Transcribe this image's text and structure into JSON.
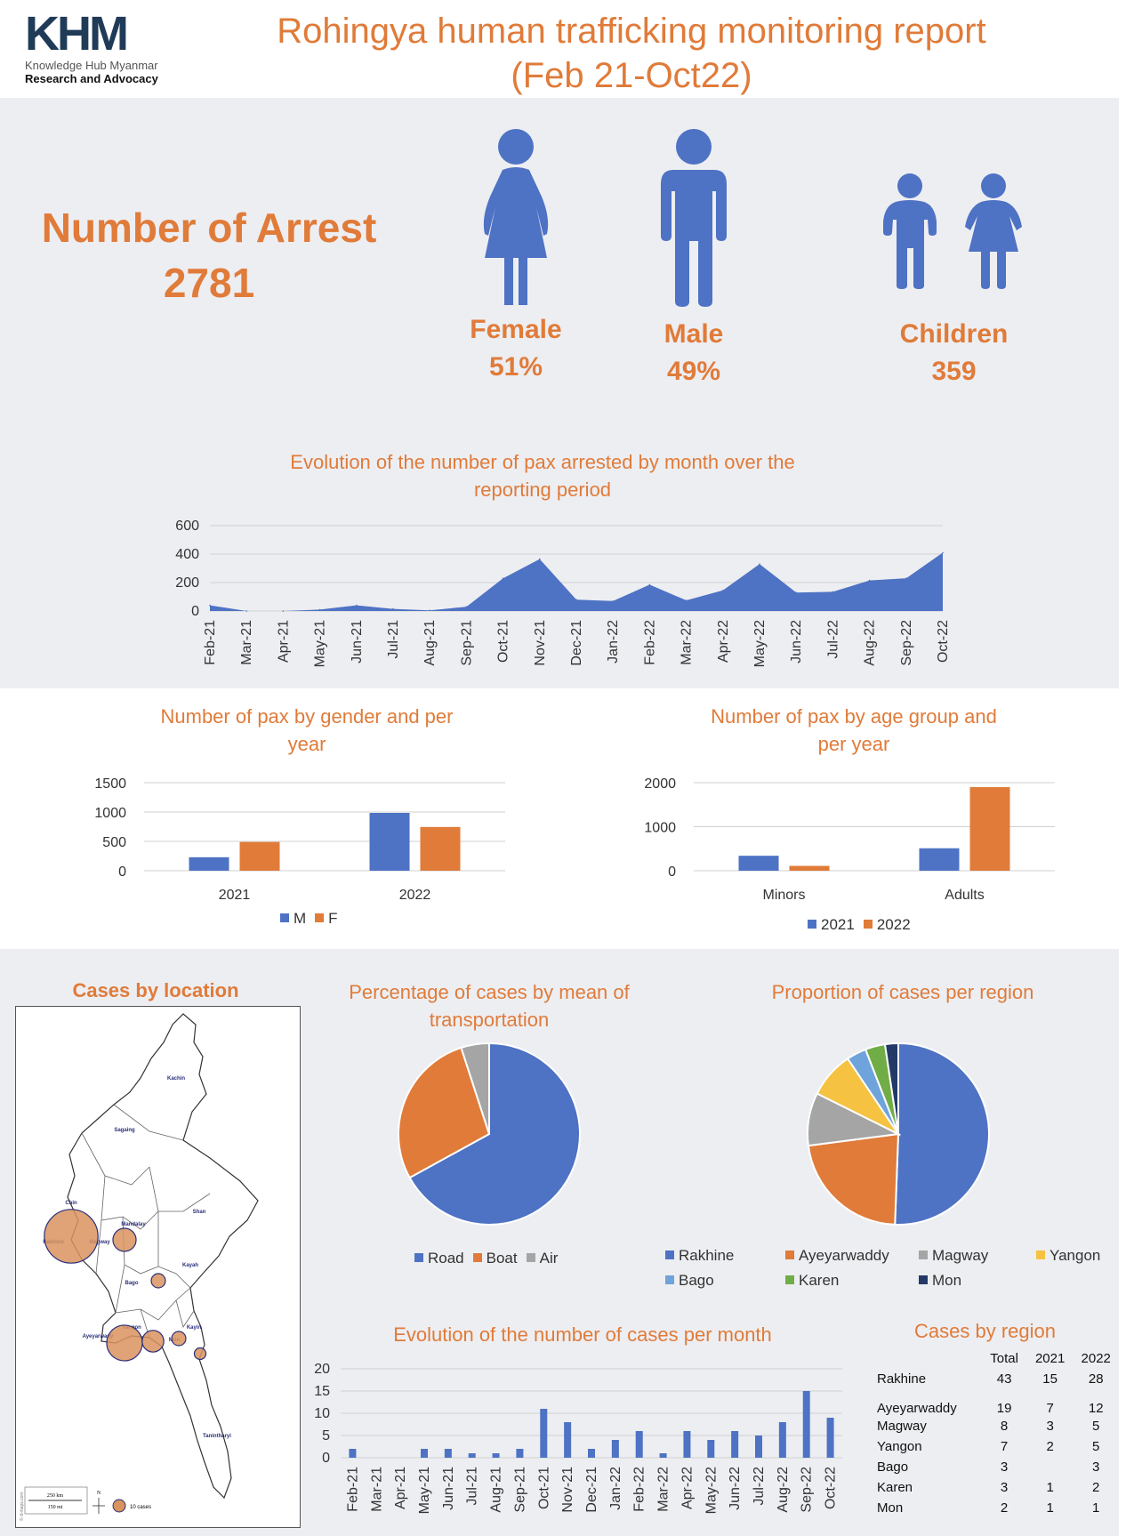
{
  "header": {
    "logo_text": "KHM",
    "logo_line1": "Knowledge Hub Myanmar",
    "logo_line2": "Research and Advocacy",
    "title_line1": "Rohingya human trafficking monitoring report",
    "title_line2": "(Feb 21-Oct22)"
  },
  "summary": {
    "arrest_label": "Number of Arrest",
    "arrest_value": "2781",
    "female_label": "Female",
    "female_value": "51%",
    "male_label": "Male",
    "male_value": "49%",
    "children_label": "Children",
    "children_value": "359"
  },
  "colors": {
    "accent": "#E07B39",
    "blue": "#4E72C4",
    "orange": "#E07B39",
    "gray": "#A5A5A5",
    "band": "#EDEEF2"
  },
  "chart_data": [
    {
      "id": "monthly_arrests",
      "type": "area",
      "title": "Evolution of the number of pax arrested by month over the reporting period",
      "title_line1": "Evolution of the number of pax arrested by month over the",
      "title_line2": "reporting period",
      "categories": [
        "Feb-21",
        "Mar-21",
        "Apr-21",
        "May-21",
        "Jun-21",
        "Jul-21",
        "Aug-21",
        "Sep-21",
        "Oct-21",
        "Nov-21",
        "Dec-21",
        "Jan-22",
        "Feb-22",
        "Mar-22",
        "Apr-22",
        "May-22",
        "Jun-22",
        "Jul-22",
        "Aug-22",
        "Sep-22",
        "Oct-22"
      ],
      "values": [
        40,
        0,
        0,
        10,
        40,
        15,
        5,
        30,
        230,
        365,
        80,
        70,
        185,
        75,
        145,
        330,
        130,
        135,
        215,
        230,
        410
      ],
      "ylim": [
        0,
        600
      ],
      "yticks": [
        0,
        200,
        400,
        600
      ],
      "grid": true
    },
    {
      "id": "gender_year",
      "type": "bar",
      "title_line1": "Number of pax by gender and per",
      "title_line2": "year",
      "categories": [
        "2021",
        "2022"
      ],
      "series": [
        {
          "name": "M",
          "values": [
            230,
            985
          ],
          "color": "#4E72C4"
        },
        {
          "name": "F",
          "values": [
            490,
            745
          ],
          "color": "#E07B39"
        }
      ],
      "ylim": [
        0,
        1500
      ],
      "yticks": [
        0,
        500,
        1000,
        1500
      ],
      "legend": "bottom"
    },
    {
      "id": "age_year",
      "type": "bar",
      "title_line1": "Number of pax by age group and",
      "title_line2": "per year",
      "categories": [
        "Minors",
        "Adults"
      ],
      "series": [
        {
          "name": "2021",
          "values": [
            340,
            510
          ],
          "color": "#4E72C4"
        },
        {
          "name": "2022",
          "values": [
            110,
            1900
          ],
          "color": "#E07B39"
        }
      ],
      "ylim": [
        0,
        2000
      ],
      "yticks": [
        0,
        1000,
        2000
      ],
      "legend": "bottom"
    },
    {
      "id": "transport",
      "type": "pie",
      "title_line1": "Percentage of cases by mean of",
      "title_line2": "transportation",
      "labels": [
        "Road",
        "Boat",
        "Air"
      ],
      "values": [
        67,
        28,
        5
      ],
      "colors": [
        "#4E72C4",
        "#E07B39",
        "#A5A5A5"
      ],
      "legend": "bottom"
    },
    {
      "id": "region_pie",
      "type": "pie",
      "title": "Proportion of cases per region",
      "labels": [
        "Rakhine",
        "Ayeyarwaddy",
        "Magway",
        "Yangon",
        "Bago",
        "Karen",
        "Mon"
      ],
      "values": [
        43,
        19,
        8,
        7,
        3,
        3,
        2
      ],
      "colors": [
        "#4E72C4",
        "#E07B39",
        "#A5A5A5",
        "#F5C242",
        "#6FA3DC",
        "#70AD47",
        "#243A66"
      ],
      "legend": "bottom"
    },
    {
      "id": "monthly_cases",
      "type": "bar",
      "title": "Evolution of the number of cases per month",
      "categories": [
        "Feb-21",
        "Mar-21",
        "Apr-21",
        "May-21",
        "Jun-21",
        "Jul-21",
        "Aug-21",
        "Sep-21",
        "Oct-21",
        "Nov-21",
        "Dec-21",
        "Jan-22",
        "Feb-22",
        "Mar-22",
        "Apr-22",
        "May-22",
        "Jun-22",
        "Jul-22",
        "Aug-22",
        "Sep-22",
        "Oct-22"
      ],
      "values": [
        2,
        0,
        0,
        2,
        2,
        1,
        1,
        2,
        11,
        8,
        2,
        4,
        6,
        1,
        6,
        4,
        6,
        5,
        8,
        15,
        9
      ],
      "ylim": [
        0,
        20
      ],
      "yticks": [
        0,
        5,
        10,
        15,
        20
      ],
      "grid": true
    }
  ],
  "map": {
    "title": "Cases by location",
    "regions": [
      "Kachin",
      "Sagaing",
      "Chin",
      "Mandalay",
      "Shan",
      "Rakhine",
      "Magway",
      "Kayah",
      "Bago",
      "Ayeyarwady",
      "Yangon",
      "Kayin",
      "Mon",
      "Tanintharyi"
    ],
    "scale_km": "250 km",
    "scale_mi": "150 mi",
    "north": "N",
    "legend_label": "10 cases",
    "credit": "© d-maps.com"
  },
  "region_table": {
    "title": "Cases by region",
    "headers": [
      "",
      "Total",
      "2021",
      "2022"
    ],
    "rows": [
      [
        "Rakhine",
        "43",
        "15",
        "28"
      ],
      [
        "Ayeyarwaddy",
        "19",
        "7",
        "12"
      ],
      [
        "Magway",
        "8",
        "3",
        "5"
      ],
      [
        "Yangon",
        "7",
        "2",
        "5"
      ],
      [
        "Bago",
        "3",
        "",
        "3"
      ],
      [
        "Karen",
        "3",
        "1",
        "2"
      ],
      [
        "Mon",
        "2",
        "1",
        "1"
      ]
    ]
  }
}
